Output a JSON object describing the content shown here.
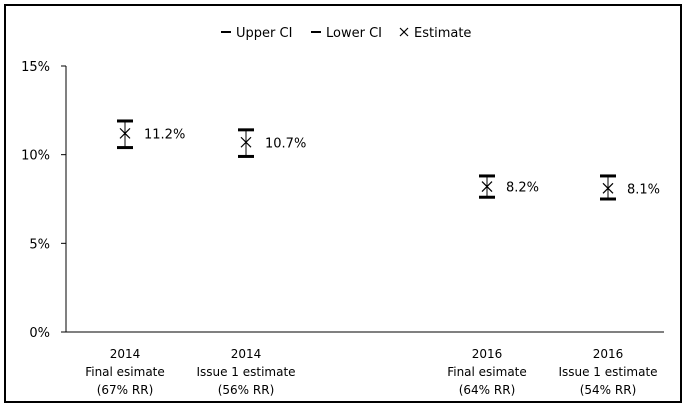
{
  "chart_data": {
    "type": "scatter",
    "title": "",
    "xlabel": "",
    "ylabel": "",
    "ylim": [
      0,
      15
    ],
    "y_ticks": [
      "0%",
      "5%",
      "10%",
      "15%"
    ],
    "y_tick_values": [
      0,
      5,
      10,
      15
    ],
    "grid": false,
    "legend_position": "top",
    "categories": [
      {
        "year": "2014",
        "name": "Final esimate",
        "rr": "(67% RR)"
      },
      {
        "year": "2014",
        "name": "Issue 1 estimate",
        "rr": "(56% RR)"
      },
      {
        "year": "2016",
        "name": "Final esimate",
        "rr": "(64% RR)"
      },
      {
        "year": "2016",
        "name": "Issue 1 estimate",
        "rr": "(54% RR)"
      }
    ],
    "series": [
      {
        "name": "Upper CI",
        "marker": "dash",
        "values": [
          11.9,
          11.4,
          8.8,
          8.8
        ]
      },
      {
        "name": "Lower CI",
        "marker": "dash",
        "values": [
          10.4,
          9.9,
          7.6,
          7.5
        ]
      },
      {
        "name": "Estimate",
        "marker": "x",
        "values": [
          11.2,
          10.7,
          8.2,
          8.1
        ]
      }
    ],
    "data_labels": [
      "11.2%",
      "10.7%",
      "8.2%",
      "8.1%"
    ],
    "colors": {
      "marker": "#000000",
      "axis": "#000000",
      "border": "#000000"
    }
  }
}
